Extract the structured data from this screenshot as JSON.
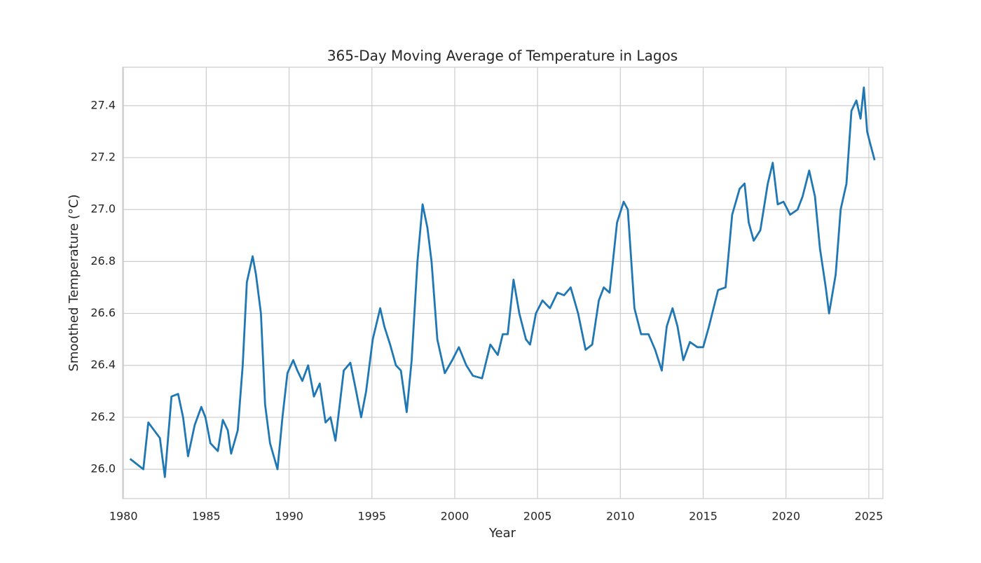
{
  "chart_data": {
    "type": "line",
    "title": "365-Day Moving Average of Temperature in Lagos",
    "xlabel": "Year",
    "ylabel": "Smoothed Temperature (°C)",
    "x": [
      1980.4,
      1981.2,
      1981.5,
      1982.2,
      1982.5,
      1982.9,
      1983.3,
      1983.6,
      1983.9,
      1984.3,
      1984.7,
      1984.95,
      1985.25,
      1985.7,
      1986.0,
      1986.3,
      1986.5,
      1986.9,
      1987.2,
      1987.45,
      1987.8,
      1988.0,
      1988.3,
      1988.55,
      1988.85,
      1989.3,
      1989.6,
      1989.9,
      1990.25,
      1990.5,
      1990.8,
      1991.15,
      1991.5,
      1991.85,
      1992.2,
      1992.5,
      1992.8,
      1993.3,
      1993.7,
      1994.05,
      1994.35,
      1994.65,
      1995.05,
      1995.5,
      1995.75,
      1996.1,
      1996.45,
      1996.75,
      1997.1,
      1997.4,
      1997.75,
      1998.06,
      1998.35,
      1998.6,
      1998.95,
      1999.4,
      1999.85,
      2000.25,
      2000.7,
      2001.1,
      2001.65,
      2002.15,
      2002.6,
      2002.9,
      2003.2,
      2003.55,
      2003.9,
      2004.3,
      2004.55,
      2004.9,
      2005.3,
      2005.75,
      2006.2,
      2006.6,
      2007.0,
      2007.45,
      2007.9,
      2008.3,
      2008.7,
      2009.0,
      2009.35,
      2009.8,
      2010.2,
      2010.45,
      2010.85,
      2011.25,
      2011.7,
      2012.1,
      2012.5,
      2012.8,
      2013.15,
      2013.45,
      2013.8,
      2014.2,
      2014.65,
      2015.0,
      2015.35,
      2015.9,
      2016.35,
      2016.75,
      2017.2,
      2017.5,
      2017.75,
      2018.05,
      2018.45,
      2018.9,
      2019.2,
      2019.5,
      2019.85,
      2020.25,
      2020.7,
      2021.0,
      2021.4,
      2021.75,
      2022.05,
      2022.4,
      2022.6,
      2023.0,
      2023.3,
      2023.65,
      2023.95,
      2024.25,
      2024.5,
      2024.7,
      2024.9,
      2025.1,
      2025.35
    ],
    "series": [
      {
        "name": "Smoothed Temperature",
        "color": "#1f77b4",
        "values": [
          26.04,
          26.0,
          26.18,
          26.12,
          25.97,
          26.28,
          26.29,
          26.2,
          26.05,
          26.17,
          26.24,
          26.2,
          26.1,
          26.07,
          26.19,
          26.15,
          26.06,
          26.15,
          26.4,
          26.72,
          26.82,
          26.75,
          26.6,
          26.25,
          26.1,
          26.0,
          26.2,
          26.37,
          26.42,
          26.38,
          26.34,
          26.4,
          26.28,
          26.33,
          26.18,
          26.2,
          26.11,
          26.38,
          26.41,
          26.3,
          26.2,
          26.3,
          26.5,
          26.62,
          26.55,
          26.48,
          26.4,
          26.38,
          26.22,
          26.42,
          26.8,
          27.02,
          26.93,
          26.8,
          26.5,
          26.37,
          26.42,
          26.47,
          26.4,
          26.36,
          26.35,
          26.48,
          26.44,
          26.52,
          26.52,
          26.73,
          26.6,
          26.5,
          26.48,
          26.6,
          26.65,
          26.62,
          26.68,
          26.67,
          26.7,
          26.6,
          26.46,
          26.48,
          26.65,
          26.7,
          26.68,
          26.95,
          27.03,
          27.0,
          26.62,
          26.52,
          26.52,
          26.46,
          26.38,
          26.55,
          26.62,
          26.55,
          26.42,
          26.49,
          26.47,
          26.47,
          26.55,
          26.69,
          26.7,
          26.98,
          27.08,
          27.1,
          26.95,
          26.88,
          26.92,
          27.1,
          27.18,
          27.02,
          27.03,
          26.98,
          27.0,
          27.05,
          27.15,
          27.05,
          26.85,
          26.7,
          26.6,
          26.75,
          27.0,
          27.1,
          27.38,
          27.42,
          27.35,
          27.47,
          27.3,
          27.25,
          27.19
        ]
      }
    ],
    "xlim": [
      1979.95,
      2025.85
    ],
    "ylim": [
      25.887,
      27.548
    ],
    "xticks": [
      1980,
      1985,
      1990,
      1995,
      2000,
      2005,
      2010,
      2015,
      2020,
      2025
    ],
    "yticks": [
      {
        "value": 26.0,
        "label": "26.0"
      },
      {
        "value": 26.2,
        "label": "26.2"
      },
      {
        "value": 26.4,
        "label": "26.4"
      },
      {
        "value": 26.6,
        "label": "26.6"
      },
      {
        "value": 26.8,
        "label": "26.8"
      },
      {
        "value": 27.0,
        "label": "27.0"
      },
      {
        "value": 27.2,
        "label": "27.2"
      },
      {
        "value": 27.4,
        "label": "27.4"
      }
    ],
    "grid": true
  }
}
